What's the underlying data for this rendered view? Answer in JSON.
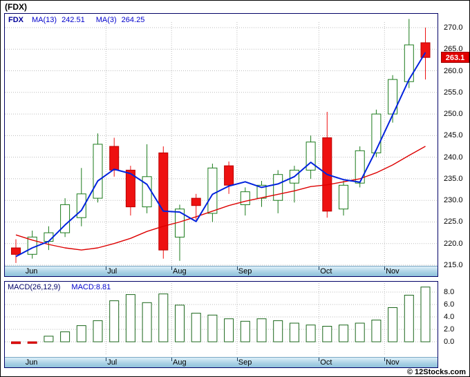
{
  "title": "(FDX)",
  "main_legend": {
    "symbol": "FDX",
    "ma13_label": "MA(13)",
    "ma13_value": "242.51",
    "ma3_label": "MA(3)",
    "ma3_value": "264.25"
  },
  "macd_legend": {
    "name": "MACD(26,12,9)",
    "value_label": "MACD:8.81"
  },
  "price_tag": "263.1",
  "copyright": "© 12Stocks.com",
  "months": [
    "Jun",
    "Jul",
    "Aug",
    "Sep",
    "Oct",
    "Nov"
  ],
  "colors": {
    "up_outline": "#1a7a1a",
    "down_fill": "#ee1111",
    "down_border": "#bb0000",
    "ma3": "#0022dd",
    "ma13": "#dd0000",
    "grid": "#bbbbbb",
    "box_border": "#000066",
    "macd_bar": "#1a661a",
    "price_tag_bg": "#e00000"
  },
  "chart_data": [
    {
      "type": "candlestick",
      "title": "FDX weekly price with MA(13) and MA(3)",
      "ylim": [
        213,
        272
      ],
      "yticks": [
        215,
        220,
        225,
        230,
        235,
        240,
        245,
        250,
        255,
        260,
        265,
        270
      ],
      "ytick_labels": [
        "215.0",
        "220.0",
        "225.0",
        "230.0",
        "235.0",
        "240.0",
        "245.0",
        "250.0",
        "255.0",
        "260.0",
        "265.0",
        "270.0"
      ],
      "x_months": [
        "Jun",
        "Jul",
        "Aug",
        "Sep",
        "Oct",
        "Nov"
      ],
      "month_label_idx": [
        1,
        6,
        10,
        14,
        19,
        23
      ],
      "month_boundary_idx": [
        5.5,
        9.5,
        13.5,
        18.5,
        22.5
      ],
      "last_price": 263.1,
      "candles": [
        {
          "o": 219.0,
          "h": 221.0,
          "l": 215.5,
          "c": 217.5
        },
        {
          "o": 217.5,
          "h": 223.0,
          "l": 216.5,
          "c": 221.5
        },
        {
          "o": 220.5,
          "h": 224.0,
          "l": 218.5,
          "c": 222.5
        },
        {
          "o": 222.5,
          "h": 230.5,
          "l": 221.5,
          "c": 229.0
        },
        {
          "o": 226.0,
          "h": 237.5,
          "l": 224.0,
          "c": 231.5
        },
        {
          "o": 230.5,
          "h": 245.5,
          "l": 229.5,
          "c": 243.0
        },
        {
          "o": 242.5,
          "h": 244.5,
          "l": 235.5,
          "c": 237.0
        },
        {
          "o": 237.0,
          "h": 238.0,
          "l": 226.5,
          "c": 228.5
        },
        {
          "o": 228.5,
          "h": 243.0,
          "l": 227.0,
          "c": 235.5
        },
        {
          "o": 241.0,
          "h": 242.5,
          "l": 216.5,
          "c": 218.5
        },
        {
          "o": 221.5,
          "h": 229.0,
          "l": 216.0,
          "c": 228.0
        },
        {
          "o": 230.5,
          "h": 231.5,
          "l": 225.5,
          "c": 228.8
        },
        {
          "o": 227.0,
          "h": 238.5,
          "l": 225.0,
          "c": 237.5
        },
        {
          "o": 238.0,
          "h": 239.0,
          "l": 231.5,
          "c": 233.5
        },
        {
          "o": 229.0,
          "h": 233.0,
          "l": 226.5,
          "c": 232.0
        },
        {
          "o": 230.5,
          "h": 234.5,
          "l": 228.5,
          "c": 233.5
        },
        {
          "o": 230.0,
          "h": 237.0,
          "l": 227.0,
          "c": 236.0
        },
        {
          "o": 234.0,
          "h": 238.0,
          "l": 229.5,
          "c": 237.0
        },
        {
          "o": 237.0,
          "h": 245.0,
          "l": 235.0,
          "c": 243.5
        },
        {
          "o": 244.5,
          "h": 250.5,
          "l": 226.0,
          "c": 227.5
        },
        {
          "o": 228.0,
          "h": 234.5,
          "l": 226.5,
          "c": 233.5
        },
        {
          "o": 234.0,
          "h": 242.5,
          "l": 233.0,
          "c": 241.5
        },
        {
          "o": 241.0,
          "h": 251.0,
          "l": 240.0,
          "c": 250.0
        },
        {
          "o": 250.0,
          "h": 259.0,
          "l": 248.0,
          "c": 258.0
        },
        {
          "o": 257.5,
          "h": 272.0,
          "l": 256.0,
          "c": 266.0
        },
        {
          "o": 266.5,
          "h": 270.0,
          "l": 258.0,
          "c": 263.1
        }
      ],
      "series": [
        {
          "name": "MA(13)",
          "legend_value": 242.51,
          "color": "#dd0000",
          "width": 1.4,
          "values": [
            222.0,
            220.8,
            219.8,
            219.0,
            218.5,
            219.0,
            220.0,
            221.2,
            222.8,
            224.0,
            225.0,
            226.2,
            227.5,
            228.8,
            229.8,
            230.6,
            231.4,
            232.2,
            233.2,
            233.6,
            234.3,
            235.0,
            236.4,
            238.2,
            240.4,
            242.51
          ]
        },
        {
          "name": "MA(3)",
          "legend_value": 264.25,
          "color": "#0022dd",
          "width": 2,
          "values": [
            217.0,
            219.0,
            220.5,
            224.3,
            227.7,
            234.5,
            237.2,
            236.2,
            233.7,
            227.5,
            227.3,
            225.1,
            231.4,
            233.3,
            234.3,
            233.0,
            233.8,
            235.5,
            238.8,
            236.0,
            234.8,
            234.2,
            241.7,
            249.8,
            258.0,
            264.25
          ]
        }
      ]
    },
    {
      "type": "bar",
      "name": "MACD(26,12,9)",
      "last_value": 8.81,
      "ylim": [
        -2.4,
        9.7
      ],
      "yticks": [
        0,
        2,
        4,
        6,
        8
      ],
      "ytick_labels": [
        "0.0",
        "2.0",
        "4.0",
        "6.0",
        "8.0"
      ],
      "values": [
        -0.3,
        -0.25,
        0.9,
        1.6,
        2.6,
        3.4,
        6.6,
        7.6,
        6.3,
        7.7,
        5.9,
        4.6,
        4.3,
        3.7,
        3.3,
        3.7,
        3.4,
        3.0,
        2.7,
        2.5,
        2.7,
        3.0,
        3.5,
        5.5,
        7.5,
        8.81
      ]
    }
  ]
}
